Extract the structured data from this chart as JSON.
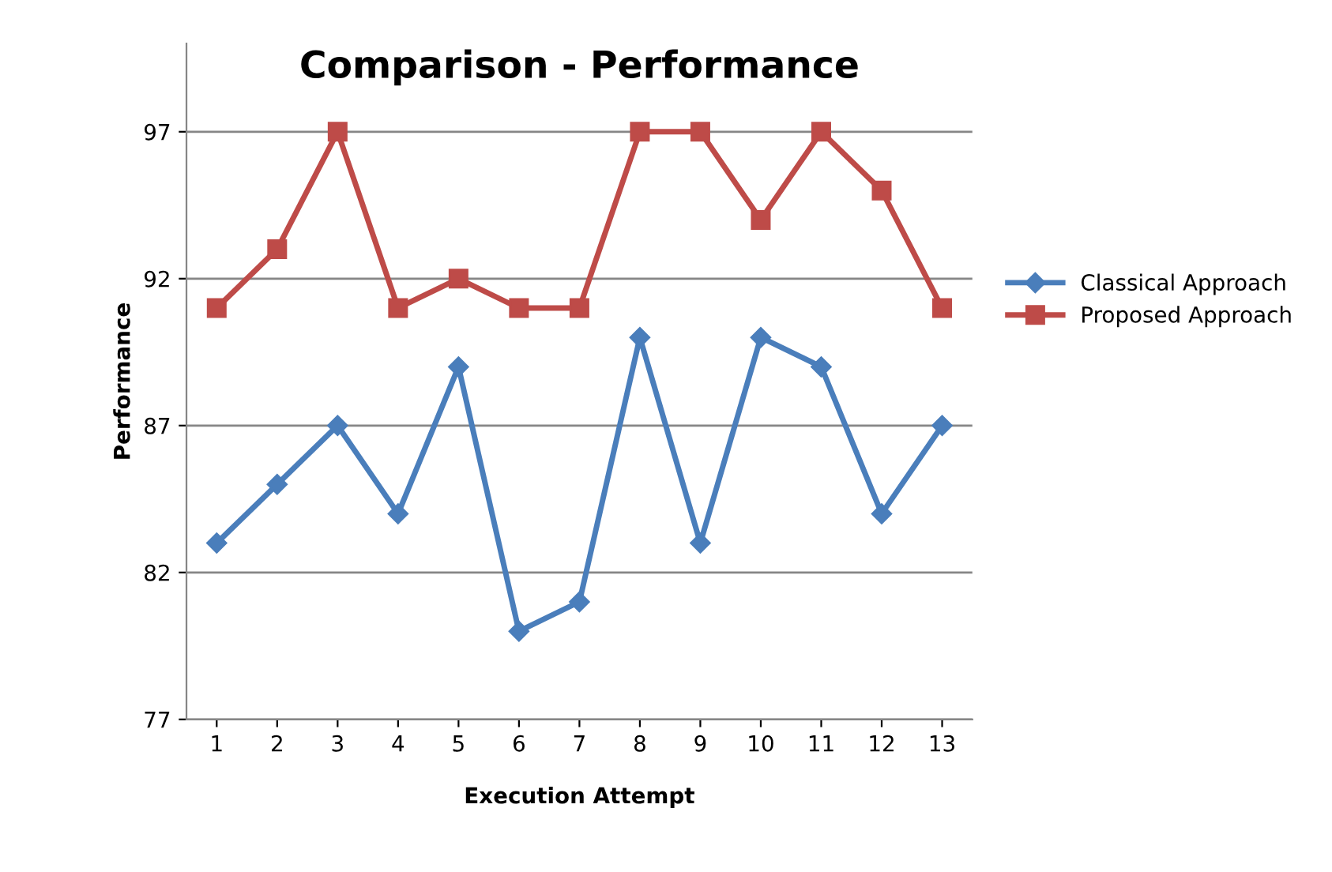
{
  "chart_data": {
    "type": "line",
    "title": "Comparison - Performance",
    "xlabel": "Execution Attempt",
    "ylabel": "Performance",
    "categories": [
      "1",
      "2",
      "3",
      "4",
      "5",
      "6",
      "7",
      "8",
      "9",
      "10",
      "11",
      "12",
      "13"
    ],
    "series": [
      {
        "name": "Classical Approach",
        "color": "#4a7ebb",
        "marker": "diamond",
        "values": [
          83,
          85,
          87,
          84,
          89,
          80,
          81,
          90,
          83,
          90,
          89,
          84,
          87
        ]
      },
      {
        "name": "Proposed Approach",
        "color": "#be4b48",
        "marker": "square",
        "values": [
          91,
          93,
          97,
          91,
          92,
          91,
          91,
          97,
          97,
          94,
          97,
          95,
          91
        ]
      }
    ],
    "ylim": [
      77,
      100
    ],
    "yticks": [
      77,
      82,
      87,
      92,
      97
    ],
    "grid": "y",
    "legend": "right",
    "line_style": "solid"
  }
}
